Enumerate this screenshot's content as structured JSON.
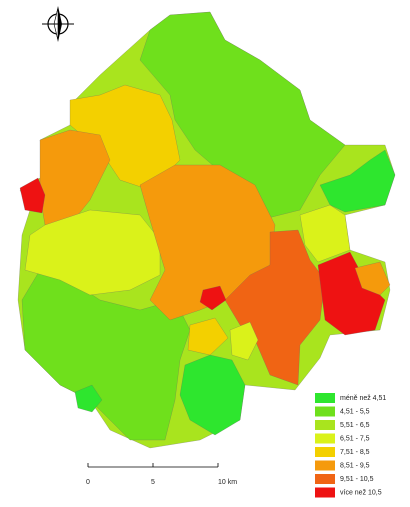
{
  "legend": {
    "items": [
      {
        "label": "méně než 4,51",
        "color": "#2ee62e"
      },
      {
        "label": "4,51 - 5,5",
        "color": "#6fe01c"
      },
      {
        "label": "5,51 - 6,5",
        "color": "#a9e41e"
      },
      {
        "label": "6,51 - 7,5",
        "color": "#daf21a"
      },
      {
        "label": "7,51 - 8,5",
        "color": "#f3d000"
      },
      {
        "label": "8,51 - 9,5",
        "color": "#f59a0c"
      },
      {
        "label": "9,51 - 10,5",
        "color": "#f06414"
      },
      {
        "label": "více než 10,5",
        "color": "#ee1212"
      }
    ]
  },
  "scale_bar": {
    "labels": [
      "0",
      "5",
      "10 km"
    ]
  }
}
